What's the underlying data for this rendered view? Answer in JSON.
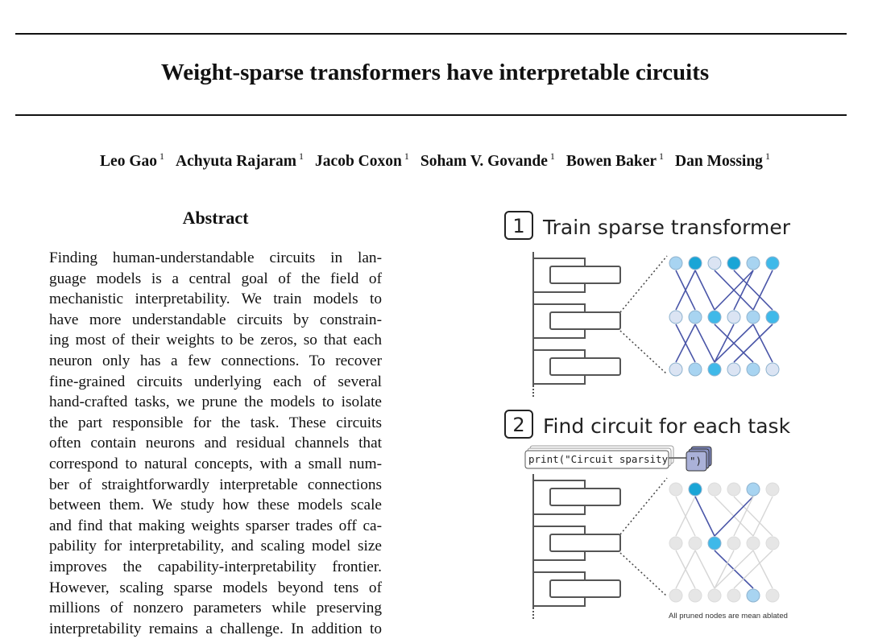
{
  "title": "Weight-sparse transformers have interpretable circuits",
  "authors": [
    {
      "name": "Leo Gao",
      "affil": "1"
    },
    {
      "name": "Achyuta Rajaram",
      "affil": "1"
    },
    {
      "name": "Jacob Coxon",
      "affil": "1"
    },
    {
      "name": "Soham V. Govande",
      "affil": "1"
    },
    {
      "name": "Bowen Baker",
      "affil": "1"
    },
    {
      "name": "Dan Mossing",
      "affil": "1"
    }
  ],
  "abstract": {
    "heading": "Abstract",
    "lines": [
      "Finding human-understandable circuits in lan-",
      "guage models is a central goal of the field of",
      "mechanistic interpretability. We train models to",
      "have more understandable circuits by constrain-",
      "ing most of their weights to be zeros, so that each",
      "neuron only has a few connections. To recover",
      "fine-grained circuits underlying each of several",
      "hand-crafted tasks, we prune the models to isolate",
      "the part responsible for the task. These circuits",
      "often contain neurons and residual channels that",
      "correspond to natural concepts, with a small num-",
      "ber of straightforwardly interpretable connections",
      "between them. We study how these models scale",
      "and find that making weights sparser trades off ca-",
      "pability for interpretability, and scaling model size",
      "improves the capability-interpretability frontier.",
      "However, scaling sparse models beyond tens of",
      "millions of nonzero parameters while preserving",
      "interpretability remains a challenge. In addition to"
    ]
  },
  "figure": {
    "step1": {
      "number": "1",
      "title": "Train sparse transformer"
    },
    "step2": {
      "number": "2",
      "title": "Find circuit for each task"
    },
    "code_prompt": "print(\"Circuit sparsity",
    "code_completion": "\")",
    "caption": "All pruned nodes are mean ablated",
    "colors": {
      "pale": "#dbe4f3",
      "light": "#a8d4f1",
      "mid": "#3fb9e9",
      "dark": "#1aa5d6",
      "edge": "#4a56a8",
      "pruned_node": "#e6e6e6",
      "pruned_edge": "#d6d6d6"
    },
    "network1": {
      "rows": [
        [
          "light",
          "dark",
          "pale",
          "dark",
          "light",
          "mid"
        ],
        [
          "pale",
          "light",
          "mid",
          "pale",
          "light",
          "mid"
        ],
        [
          "pale",
          "light",
          "mid",
          "pale",
          "light",
          "pale"
        ]
      ],
      "edges_top": [
        [
          0,
          1
        ],
        [
          1,
          0
        ],
        [
          1,
          2
        ],
        [
          2,
          4
        ],
        [
          3,
          5
        ],
        [
          4,
          2
        ],
        [
          4,
          3
        ],
        [
          5,
          4
        ]
      ],
      "edges_bottom": [
        [
          0,
          1
        ],
        [
          1,
          0
        ],
        [
          1,
          2
        ],
        [
          2,
          4
        ],
        [
          3,
          2
        ],
        [
          4,
          2
        ],
        [
          4,
          5
        ],
        [
          5,
          3
        ]
      ]
    },
    "network2": {
      "rows": [
        [
          "pruned",
          "dark",
          "pruned",
          "pruned",
          "light",
          "pruned"
        ],
        [
          "pruned",
          "pruned",
          "mid",
          "pruned",
          "pruned",
          "pruned"
        ],
        [
          "pruned",
          "pruned",
          "pruned",
          "pruned",
          "light",
          "pruned"
        ]
      ],
      "active_top": [
        [
          1,
          2
        ],
        [
          4,
          2
        ]
      ],
      "active_bottom": [
        [
          2,
          4
        ]
      ]
    }
  }
}
